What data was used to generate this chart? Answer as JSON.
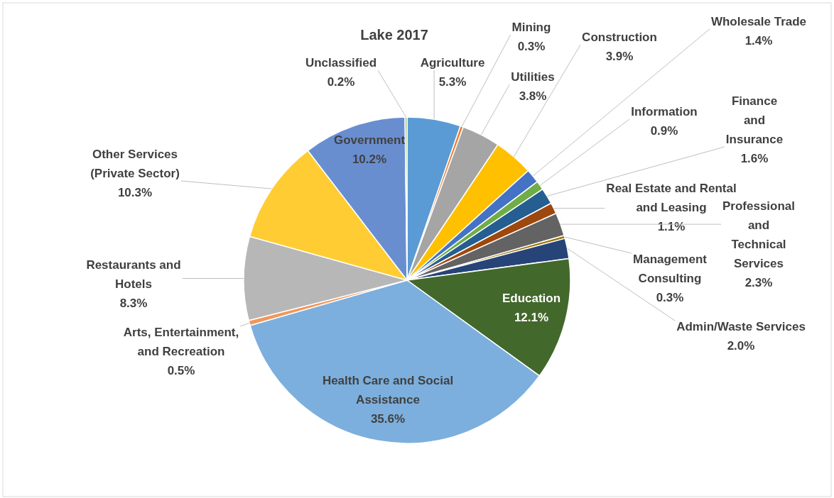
{
  "chart_data": {
    "type": "pie",
    "title": "Lake 2017",
    "categories": [
      "Agriculture",
      "Mining",
      "Utilities",
      "Construction",
      "Wholesale Trade",
      "Information",
      "Finance and Insurance",
      "Real Estate and Rental and Leasing",
      "Professional and Technical Services",
      "Management Consulting",
      "Admin/Waste Services",
      "Education",
      "Health Care and Social Assistance",
      "Arts, Entertainment, and Recreation",
      "Restaurants and Hotels",
      "Other Services (Private Sector)",
      "Government",
      "Unclassified"
    ],
    "values": [
      5.3,
      0.3,
      3.8,
      3.9,
      1.4,
      0.9,
      1.6,
      1.1,
      2.3,
      0.3,
      2.0,
      12.1,
      35.6,
      0.5,
      8.3,
      10.3,
      10.2,
      0.2
    ],
    "value_labels": [
      "5.3%",
      "0.3%",
      "3.8%",
      "3.9%",
      "1.4%",
      "0.9%",
      "1.6%",
      "1.1%",
      "2.3%",
      "0.3%",
      "2.0%",
      "12.1%",
      "35.6%",
      "0.5%",
      "8.3%",
      "10.3%",
      "10.2%",
      "0.2%"
    ],
    "colors": [
      "#5b9bd5",
      "#ed7d31",
      "#a5a5a5",
      "#ffc000",
      "#4472c4",
      "#70ad47",
      "#255e91",
      "#9e480e",
      "#636363",
      "#997300",
      "#264478",
      "#43682b",
      "#7cafdd",
      "#f1975a",
      "#b7b7b7",
      "#ffcd33",
      "#698ed0",
      "#8cc168"
    ],
    "legend": false
  }
}
